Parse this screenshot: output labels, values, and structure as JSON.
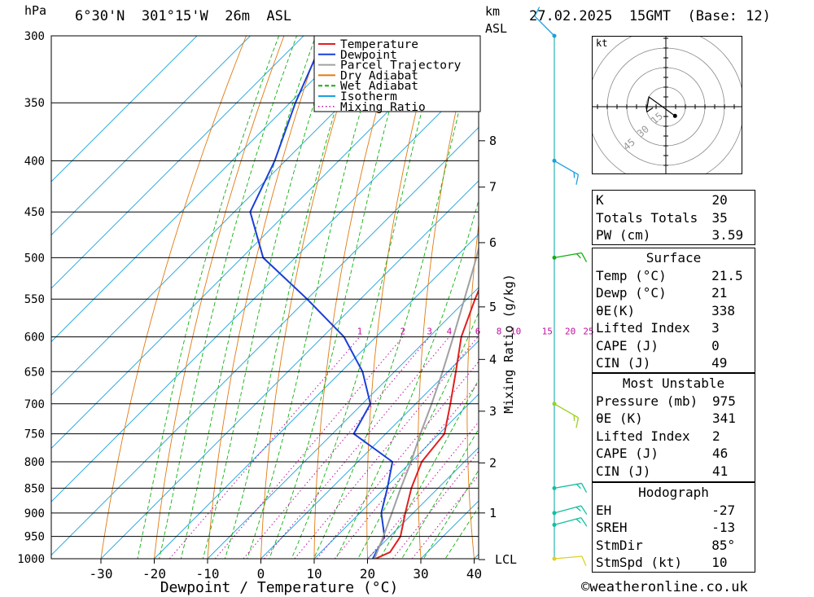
{
  "header": {
    "pressure_unit": "hPa",
    "location": "6°30'N  301°15'W  26m  ASL",
    "height_unit_top": "km",
    "height_unit_bottom": "ASL",
    "datetime": "27.02.2025  15GMT  (Base: 12)"
  },
  "credit": "©weatheronline.co.uk",
  "colors": {
    "temperature": "#e02020",
    "dewpoint": "#1a3fd6",
    "parcel": "#a0a0a0",
    "dry_adiabat": "#e07a10",
    "wet_adiabat": "#10b010",
    "isotherm": "#1aa0e0",
    "mixing_ratio": "#c010a0",
    "wind_barb_high": "#1aa0e0",
    "wind_barb_mid": "#10b010",
    "wind_barb_700": "#9ad020",
    "wind_barb_low": "#10c0a0",
    "wind_barb_sfc": "#e0d020"
  },
  "chart_data": {
    "type": "skew-t",
    "xlabel": "Dewpoint / Temperature (°C)",
    "ylabel": "hPa",
    "x_ticks": [
      -30,
      -20,
      -10,
      0,
      10,
      20,
      30,
      40
    ],
    "pressure_levels": [
      300,
      350,
      400,
      450,
      500,
      550,
      600,
      650,
      700,
      750,
      800,
      850,
      900,
      950,
      1000
    ],
    "height_km_ticks": [
      {
        "label": "8",
        "p": 382
      },
      {
        "label": "7",
        "p": 425
      },
      {
        "label": "6",
        "p": 483
      },
      {
        "label": "5",
        "p": 560
      },
      {
        "label": "4",
        "p": 632
      },
      {
        "label": "3",
        "p": 712
      },
      {
        "label": "2",
        "p": 802
      },
      {
        "label": "1",
        "p": 900
      },
      {
        "label": "LCL",
        "p": 1002
      }
    ],
    "mixing_ratio_axis_label": "Mixing Ratio (g/kg)",
    "mixing_ratio_labels": [
      "1",
      "2",
      "3",
      "4",
      "6",
      "8",
      "10",
      "15",
      "20",
      "25"
    ],
    "mixing_ratio_values": [
      1,
      2,
      3,
      4,
      6,
      8,
      10,
      15,
      20,
      25
    ],
    "legend": [
      {
        "name": "Temperature",
        "style": "temperature"
      },
      {
        "name": "Dewpoint",
        "style": "dewpoint"
      },
      {
        "name": "Parcel Trajectory",
        "style": "parcel"
      },
      {
        "name": "Dry Adiabat",
        "style": "dry_adiabat"
      },
      {
        "name": "Wet Adiabat",
        "style": "wet_adiabat"
      },
      {
        "name": "Isotherm",
        "style": "isotherm"
      },
      {
        "name": "Mixing Ratio",
        "style": "mixing_ratio"
      }
    ],
    "series": [
      {
        "name": "Temperature",
        "points": [
          [
            1000,
            21.5
          ],
          [
            985,
            23.0
          ],
          [
            950,
            22.0
          ],
          [
            900,
            18.5
          ],
          [
            850,
            15.0
          ],
          [
            800,
            12.0
          ],
          [
            750,
            11.0
          ],
          [
            700,
            6.5
          ],
          [
            650,
            1.5
          ],
          [
            600,
            -4.0
          ],
          [
            550,
            -8.5
          ],
          [
            500,
            -13.0
          ],
          [
            450,
            -19.5
          ],
          [
            400,
            -27.5
          ],
          [
            365,
            -34.0
          ]
        ]
      },
      {
        "name": "Dewpoint",
        "points": [
          [
            1000,
            21.0
          ],
          [
            950,
            19.0
          ],
          [
            900,
            14.0
          ],
          [
            850,
            10.5
          ],
          [
            800,
            6.5
          ],
          [
            750,
            -6.0
          ],
          [
            700,
            -8.5
          ],
          [
            650,
            -16.0
          ],
          [
            600,
            -26.0
          ],
          [
            550,
            -40.0
          ],
          [
            500,
            -56.0
          ],
          [
            450,
            -67.0
          ],
          [
            400,
            -72.0
          ],
          [
            350,
            -79.0
          ],
          [
            300,
            -86.0
          ]
        ]
      },
      {
        "name": "Parcel Trajectory",
        "points": [
          [
            1000,
            21.3
          ],
          [
            950,
            18.8
          ],
          [
            900,
            16.0
          ],
          [
            850,
            13.0
          ],
          [
            800,
            10.0
          ],
          [
            750,
            6.5
          ],
          [
            700,
            3.0
          ],
          [
            650,
            -1.0
          ],
          [
            600,
            -5.5
          ],
          [
            550,
            -10.5
          ],
          [
            500,
            -16.0
          ],
          [
            450,
            -22.5
          ],
          [
            400,
            -30.0
          ],
          [
            350,
            -38.5
          ],
          [
            300,
            -49.0
          ]
        ]
      }
    ],
    "wind_profile": [
      {
        "p": 1000,
        "speed_kt": 10,
        "dir_deg": 85
      },
      {
        "p": 925,
        "speed_kt": 15,
        "dir_deg": 75
      },
      {
        "p": 900,
        "speed_kt": 15,
        "dir_deg": 75
      },
      {
        "p": 850,
        "speed_kt": 15,
        "dir_deg": 80
      },
      {
        "p": 700,
        "speed_kt": 15,
        "dir_deg": 120
      },
      {
        "p": 500,
        "speed_kt": 15,
        "dir_deg": 80
      },
      {
        "p": 400,
        "speed_kt": 15,
        "dir_deg": 120
      },
      {
        "p": 300,
        "speed_kt": 10,
        "dir_deg": 315
      }
    ],
    "hodograph": {
      "unit": "kt",
      "ring_labels": [
        "15",
        "30",
        "45"
      ]
    }
  },
  "indices": {
    "block1": [
      {
        "key": "K",
        "value": "20"
      },
      {
        "key": "Totals Totals",
        "value": "35"
      },
      {
        "key": "PW (cm)",
        "value": "3.59"
      }
    ],
    "surface": {
      "title": "Surface",
      "rows": [
        {
          "key": "Temp (°C)",
          "value": "21.5"
        },
        {
          "key": "Dewp (°C)",
          "value": "21"
        },
        {
          "key": "θE(K)",
          "value": "338"
        },
        {
          "key": "Lifted Index",
          "value": "3"
        },
        {
          "key": "CAPE (J)",
          "value": "0"
        },
        {
          "key": "CIN (J)",
          "value": "49"
        }
      ]
    },
    "most_unstable": {
      "title": "Most Unstable",
      "rows": [
        {
          "key": "Pressure (mb)",
          "value": "975"
        },
        {
          "key": "θE (K)",
          "value": "341"
        },
        {
          "key": "Lifted Index",
          "value": "2"
        },
        {
          "key": "CAPE (J)",
          "value": "46"
        },
        {
          "key": "CIN (J)",
          "value": "41"
        }
      ]
    },
    "hodograph": {
      "title": "Hodograph",
      "rows": [
        {
          "key": "EH",
          "value": "-27"
        },
        {
          "key": "SREH",
          "value": "-13"
        },
        {
          "key": "StmDir",
          "value": "85°"
        },
        {
          "key": "StmSpd (kt)",
          "value": "10"
        }
      ]
    }
  }
}
